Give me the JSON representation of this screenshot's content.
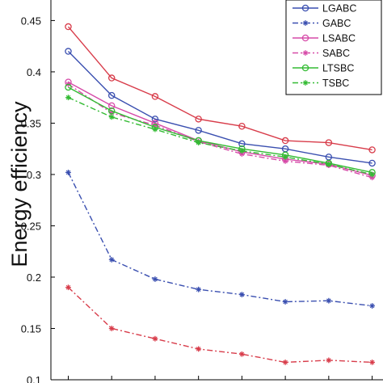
{
  "chart_data": {
    "type": "line",
    "title": "",
    "xlabel": "",
    "ylabel": "Energy  efficiency",
    "ylim": [
      0.1,
      0.47
    ],
    "yticks": [
      "0.1",
      "0.15",
      "0.2",
      "0.25",
      "0.3",
      "0.35",
      "0.4",
      "0.45"
    ],
    "ytick_values": [
      0.1,
      0.15,
      0.2,
      0.25,
      0.3,
      0.35,
      0.4,
      0.45
    ],
    "x": [
      1,
      2,
      3,
      4,
      5,
      6,
      7,
      8
    ],
    "xlim": [
      0.6,
      8.25
    ],
    "grid": false,
    "legend_position": "top-right",
    "series": [
      {
        "name": "LGABC",
        "color": "#3a4fb0",
        "dash": "solid",
        "marker": "circle",
        "values": [
          0.42,
          0.377,
          0.354,
          0.343,
          0.33,
          0.325,
          0.317,
          0.311
        ]
      },
      {
        "name": "GABC",
        "color": "#3a4fb0",
        "dash": "dashdot",
        "marker": "star",
        "values": [
          0.302,
          0.217,
          0.198,
          0.188,
          0.183,
          0.176,
          0.177,
          0.172
        ]
      },
      {
        "name": "LSABC",
        "color": "#d64aa8",
        "dash": "solid",
        "marker": "circle",
        "values": [
          0.39,
          0.367,
          0.35,
          0.333,
          0.322,
          0.315,
          0.31,
          0.299
        ]
      },
      {
        "name": "SABC",
        "color": "#d64aa8",
        "dash": "dashdot",
        "marker": "star",
        "values": [
          0.388,
          0.36,
          0.348,
          0.332,
          0.32,
          0.313,
          0.309,
          0.297
        ]
      },
      {
        "name": "LTSBC",
        "color": "#33bb33",
        "dash": "solid",
        "marker": "circle",
        "values": [
          0.385,
          0.362,
          0.346,
          0.333,
          0.325,
          0.319,
          0.311,
          0.302
        ]
      },
      {
        "name": "TSBC",
        "color": "#33bb33",
        "dash": "dashdot",
        "marker": "star",
        "values": [
          0.375,
          0.356,
          0.344,
          0.331,
          0.323,
          0.317,
          0.31,
          0.3
        ]
      },
      {
        "name": "",
        "color": "#d83c4a",
        "dash": "solid",
        "marker": "circle",
        "values": [
          0.444,
          0.394,
          0.376,
          0.354,
          0.347,
          0.333,
          0.331,
          0.324
        ]
      },
      {
        "name": "",
        "color": "#d83c4a",
        "dash": "dashdot",
        "marker": "star",
        "values": [
          0.19,
          0.15,
          0.14,
          0.13,
          0.125,
          0.117,
          0.119,
          0.117
        ]
      }
    ]
  }
}
